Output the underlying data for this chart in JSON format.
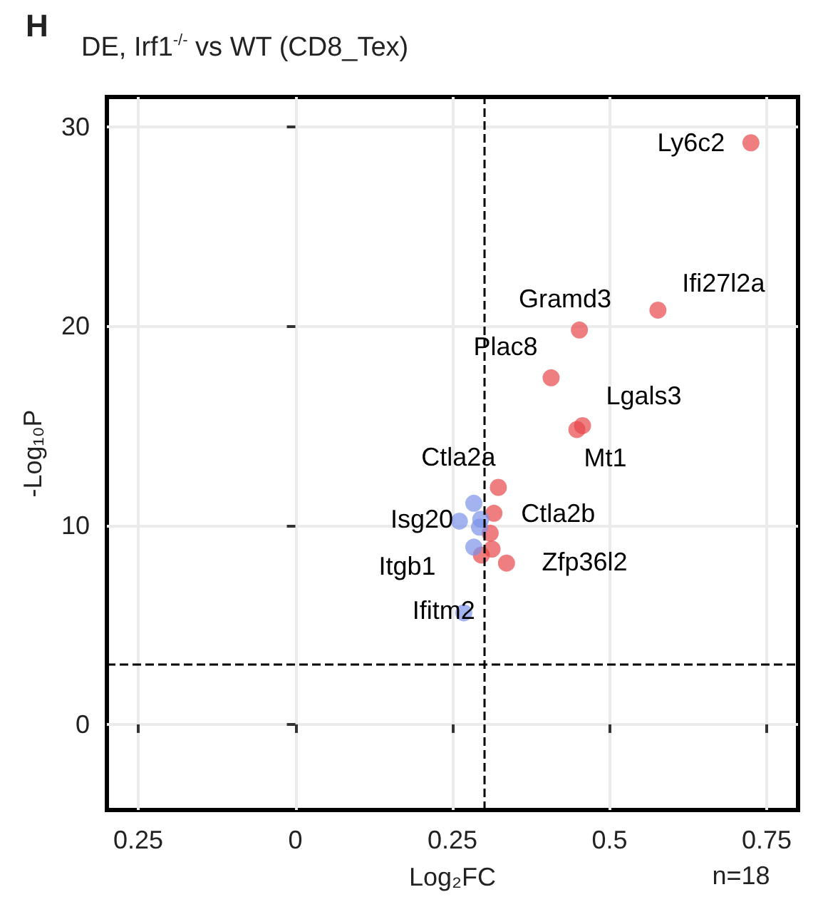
{
  "chart_data": {
    "type": "scatter",
    "title": "DE, Irf1$^{-/-}$ vs WT (CD8_Tex)",
    "xlabel": "Log₂FC",
    "ylabel": "-Log₁₀P",
    "xlim": [
      -0.3,
      0.8
    ],
    "ylim": [
      -4.3,
      31.5
    ],
    "xticks": [
      {
        "value": -0.25,
        "label": "0.25"
      },
      0,
      0.25,
      0.5,
      0.75
    ],
    "yticks": [
      0,
      10,
      20,
      30
    ],
    "grid": true,
    "marker": "circle",
    "ref_lines": [
      {
        "axis": "x",
        "value": 0.3,
        "line_style": "dashed",
        "color": "#000000"
      },
      {
        "axis": "y",
        "value": 3,
        "line_style": "dashed",
        "color": "#000000"
      }
    ],
    "series": [
      {
        "color": "#e8474c",
        "x": [
          0.725,
          0.577,
          0.452,
          0.407,
          0.457,
          0.448,
          0.323,
          0.316,
          0.31,
          0.313,
          0.336,
          0.296
        ],
        "values": [
          29.2,
          20.8,
          19.8,
          17.4,
          15.0,
          14.8,
          11.9,
          10.6,
          9.6,
          8.8,
          8.1,
          8.5
        ]
      },
      {
        "color": "#7b93e8",
        "x": [
          0.284,
          0.261,
          0.295,
          0.284,
          0.268,
          0.293
        ],
        "values": [
          11.1,
          10.2,
          10.3,
          8.9,
          5.6,
          9.9
        ]
      }
    ],
    "annotations": [
      "H",
      "n=18",
      {
        "text": "Ly6c2",
        "x": 0.725,
        "y": 29.2
      },
      {
        "text": "Ifi27l2a",
        "x": 0.577,
        "y": 20.8
      },
      {
        "text": "Gramd3",
        "x": 0.452,
        "y": 19.8
      },
      {
        "text": "Plac8",
        "x": 0.407,
        "y": 17.4
      },
      {
        "text": "Lgals3",
        "x": 0.457,
        "y": 15.0
      },
      {
        "text": "Mt1",
        "x": 0.448,
        "y": 14.8
      },
      {
        "text": "Ctla2a",
        "x": 0.323,
        "y": 11.9
      },
      {
        "text": "Ctla2b",
        "x": 0.316,
        "y": 10.6
      },
      {
        "text": "Isg20",
        "x": 0.31,
        "y": 9.6
      },
      {
        "text": "Itgb1",
        "x": 0.296,
        "y": 8.5
      },
      {
        "text": "Zfp36l2",
        "x": 0.313,
        "y": 8.8
      },
      {
        "text": "Ifitm2",
        "x": 0.336,
        "y": 8.1
      }
    ]
  }
}
